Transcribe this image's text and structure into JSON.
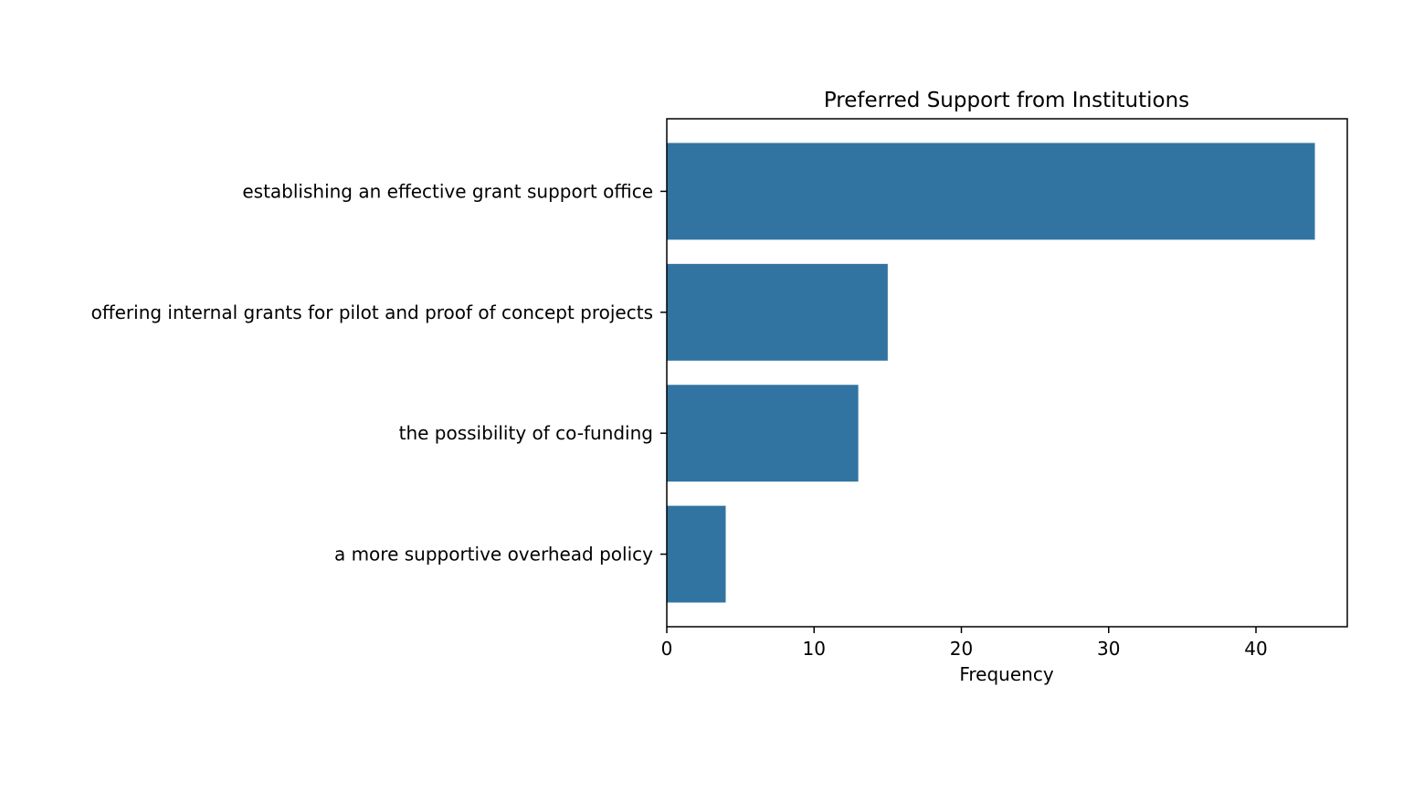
{
  "chart_data": {
    "type": "bar",
    "orientation": "horizontal",
    "title": "Preferred Support from Institutions",
    "xlabel": "Frequency",
    "ylabel": "",
    "categories": [
      "establishing an effective grant support office",
      "offering internal grants for pilot and proof of concept projects",
      "the possibility of co-funding",
      "a more supportive overhead policy"
    ],
    "values": [
      44,
      15,
      13,
      4
    ],
    "xlim": [
      0,
      46.2
    ],
    "xticks": [
      0,
      10,
      20,
      30,
      40
    ],
    "grid": false,
    "legend": "none",
    "bar_color": "#3274a1"
  }
}
